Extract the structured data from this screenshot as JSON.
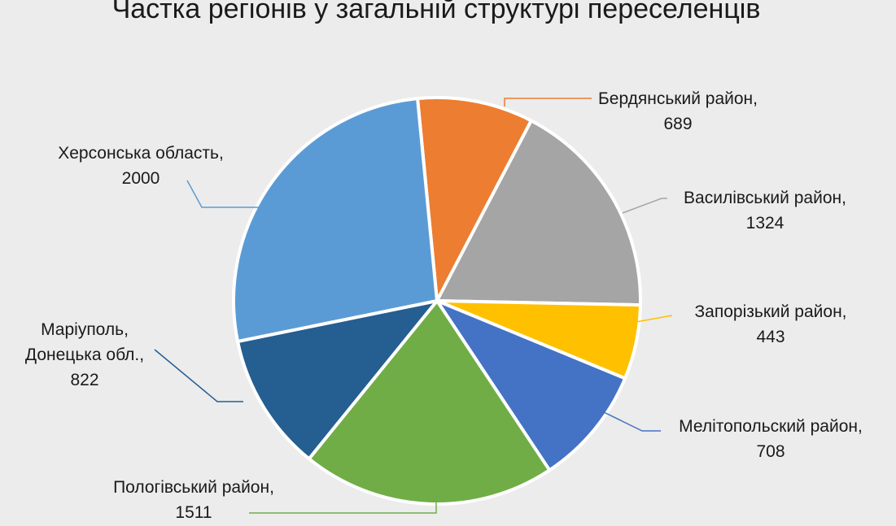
{
  "chart_data": {
    "type": "pie",
    "title": "Частка регіонів у загальній структурі переселенців",
    "slices": [
      {
        "name": "Бердянський район",
        "value": 689,
        "color": "#ED7D31",
        "label_lines": [
          "Бердянський район,",
          "689"
        ]
      },
      {
        "name": "Василівський район",
        "value": 1324,
        "color": "#A5A5A5",
        "label_lines": [
          "Василівський район,",
          "1324"
        ]
      },
      {
        "name": "Запорізький район",
        "value": 443,
        "color": "#FFC000",
        "label_lines": [
          "Запорізький район,",
          "443"
        ]
      },
      {
        "name": "Мелітопольский район",
        "value": 708,
        "color": "#4472C4",
        "label_lines": [
          "Мелітопольский район,",
          "708"
        ]
      },
      {
        "name": "Пологівський район",
        "value": 1511,
        "color": "#70AD47",
        "label_lines": [
          "Пологівський район,",
          "1511"
        ]
      },
      {
        "name": "Маріуполь, Донецька обл.",
        "value": 822,
        "color": "#255E91",
        "label_lines": [
          "Маріуполь,",
          "Донецька обл.,",
          "822"
        ]
      },
      {
        "name": "Херсонська область",
        "value": 2000,
        "color": "#5B9BD5",
        "label_lines": [
          "Херсонська область,",
          "2000"
        ]
      }
    ]
  }
}
